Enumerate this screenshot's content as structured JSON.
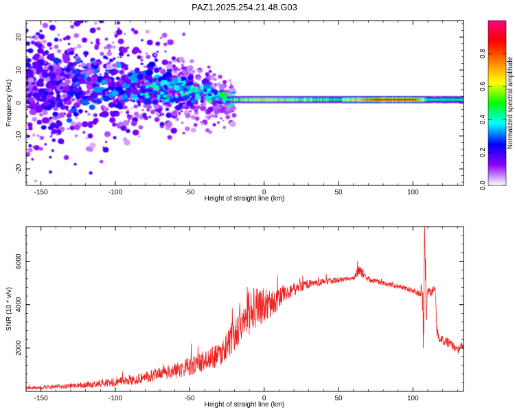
{
  "title": "PAZ1.2025.254.21.48.G03",
  "chart_data": [
    {
      "type": "heatmap",
      "xlabel": "Height of straight line (km)",
      "ylabel": "Frequency (Hz)",
      "xlim": [
        -160,
        134
      ],
      "ylim": [
        -25,
        25
      ],
      "xticks": [
        -150,
        -100,
        -50,
        0,
        50,
        100
      ],
      "yticks": [
        -20,
        -10,
        0,
        10,
        20
      ],
      "colorbar": {
        "label": "Normalized spectral amplitude",
        "range": [
          0,
          1
        ],
        "ticks": [
          "0.0",
          "0.2",
          "0.4",
          "0.6",
          "0.8"
        ],
        "colors": [
          "#ffffff",
          "#8a00ff",
          "#0000ff",
          "#00ffff",
          "#00ff00",
          "#ffff00",
          "#ff8000",
          "#ff0000",
          "#ff0080"
        ]
      },
      "ridge": [
        {
          "x": -160,
          "freq": 6,
          "amp": 0.2,
          "spread": 14
        },
        {
          "x": -120,
          "freq": 5,
          "amp": 0.28,
          "spread": 10
        },
        {
          "x": -90,
          "freq": 5,
          "amp": 0.32,
          "spread": 7
        },
        {
          "x": -60,
          "freq": 4,
          "amp": 0.35,
          "spread": 5
        },
        {
          "x": -40,
          "freq": 3,
          "amp": 0.4,
          "spread": 3
        },
        {
          "x": -25,
          "freq": 1,
          "amp": 0.45,
          "spread": 1
        },
        {
          "x": -20,
          "freq": 1,
          "amp": 0.55,
          "spread": 0.5
        },
        {
          "x": 0,
          "freq": 1,
          "amp": 0.65,
          "spread": 0.3
        },
        {
          "x": 50,
          "freq": 1,
          "amp": 0.5,
          "spread": 0.3
        },
        {
          "x": 80,
          "freq": 1,
          "amp": 0.95,
          "spread": 0.3
        },
        {
          "x": 100,
          "freq": 1,
          "amp": 0.9,
          "spread": 0.3
        },
        {
          "x": 110,
          "freq": 1,
          "amp": 0.45,
          "spread": 0.4
        },
        {
          "x": 134,
          "freq": 1,
          "amp": 0.48,
          "spread": 0.4
        }
      ]
    },
    {
      "type": "line",
      "xlabel": "Height of straight line (km)",
      "ylabel": "SNR (10 * v/v)",
      "xlim": [
        -160,
        134
      ],
      "ylim": [
        0,
        7600
      ],
      "xticks": [
        -150,
        -100,
        -50,
        0,
        50,
        100
      ],
      "yticks": [
        2000,
        4000,
        6000
      ],
      "color": "#ee2222",
      "series": [
        {
          "name": "SNR",
          "x": [
            -160,
            -150,
            -140,
            -130,
            -120,
            -110,
            -100,
            -90,
            -80,
            -70,
            -60,
            -50,
            -40,
            -30,
            -25,
            -20,
            -15,
            -13,
            -10,
            -5,
            0,
            5,
            10,
            15,
            20,
            30,
            40,
            50,
            60,
            64,
            70,
            80,
            90,
            100,
            105,
            106,
            107,
            108,
            109,
            110,
            112,
            115,
            116,
            118,
            125,
            130,
            134
          ],
          "y": [
            150,
            180,
            220,
            260,
            300,
            360,
            420,
            520,
            650,
            800,
            950,
            1150,
            1400,
            1700,
            2100,
            2600,
            3300,
            3900,
            3700,
            3850,
            3950,
            4050,
            4300,
            4500,
            4700,
            4950,
            5050,
            5150,
            5200,
            5600,
            5150,
            5000,
            4850,
            4650,
            4500,
            4800,
            3000,
            6400,
            3800,
            4650,
            4550,
            4750,
            2800,
            2400,
            2200,
            1900,
            2150
          ],
          "noise": [
            60,
            80,
            100,
            120,
            140,
            170,
            200,
            240,
            280,
            330,
            380,
            420,
            480,
            550,
            650,
            800,
            900,
            1100,
            1100,
            900,
            800,
            600,
            500,
            400,
            300,
            200,
            150,
            130,
            120,
            250,
            140,
            120,
            120,
            120,
            150,
            600,
            1500,
            1200,
            1200,
            250,
            200,
            200,
            300,
            200,
            200,
            200,
            200
          ]
        }
      ]
    }
  ]
}
